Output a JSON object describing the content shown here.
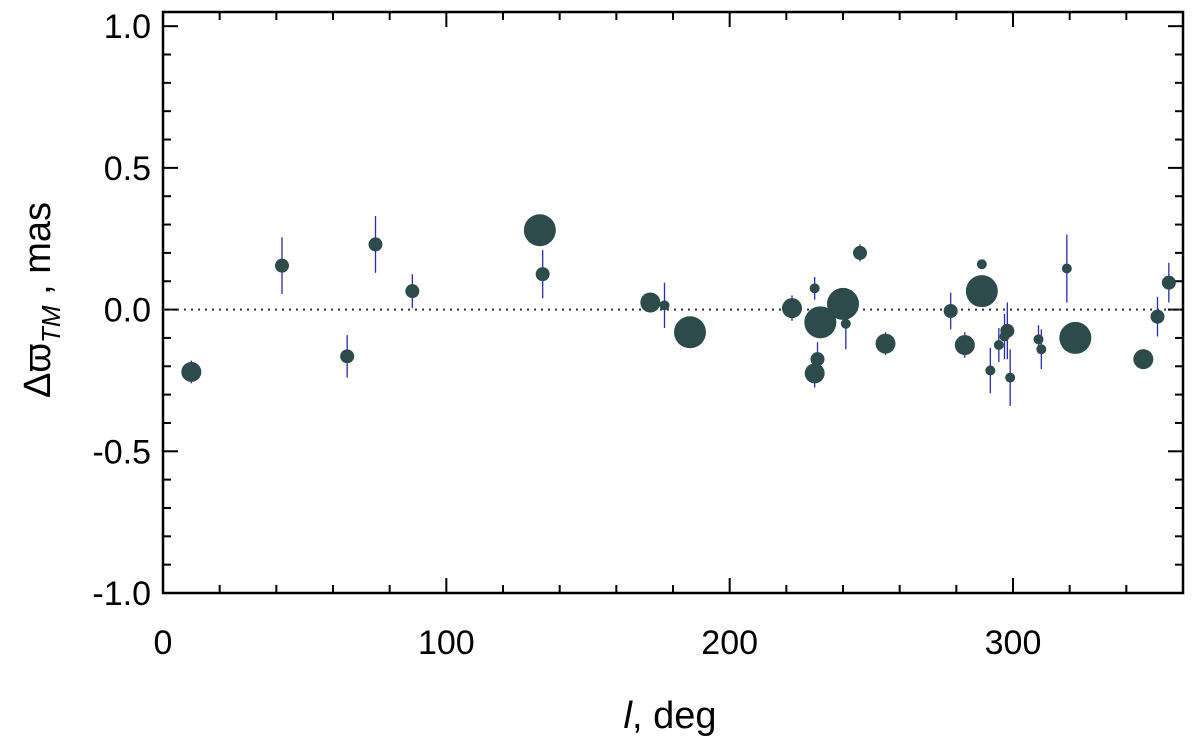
{
  "chart_data": {
    "type": "scatter",
    "xlabel_italic": "l",
    "xlabel_rest": ", deg",
    "ylabel_main": "Δϖ",
    "ylabel_sub": "TM",
    "ylabel_rest": " , mas",
    "xlim": [
      0,
      360
    ],
    "ylim": [
      -1.0,
      1.05
    ],
    "x_ticks": [
      0,
      100,
      200,
      300
    ],
    "x_tick_labels": [
      "0",
      "100",
      "200",
      "300"
    ],
    "y_ticks": [
      1.0,
      0.5,
      0.0,
      -0.5,
      -1.0
    ],
    "y_tick_labels": [
      "1.0",
      "0.5",
      "0.0",
      "-0.5",
      "-1.0"
    ],
    "x_minor_step": 20,
    "y_minor_step": 0.1,
    "reference_line": {
      "y": 0.0,
      "style": "dotted"
    },
    "grid": false,
    "colors": {
      "marker": "#2e4b4b",
      "errorbar": "#2b2bb0",
      "axis": "#000000"
    },
    "points": [
      {
        "x": 10,
        "y": -0.22,
        "err": 0.04,
        "size": "medium"
      },
      {
        "x": 42,
        "y": 0.155,
        "err": 0.1,
        "size": "small"
      },
      {
        "x": 65,
        "y": -0.165,
        "err": 0.075,
        "size": "small"
      },
      {
        "x": 75,
        "y": 0.23,
        "err": 0.1,
        "size": "small"
      },
      {
        "x": 88,
        "y": 0.065,
        "err": 0.06,
        "size": "small"
      },
      {
        "x": 133,
        "y": 0.28,
        "err": 0.05,
        "size": "large"
      },
      {
        "x": 134,
        "y": 0.125,
        "err": 0.085,
        "size": "small"
      },
      {
        "x": 172,
        "y": 0.025,
        "err": 0.03,
        "size": "medium"
      },
      {
        "x": 177,
        "y": 0.015,
        "err": 0.08,
        "size": "tiny"
      },
      {
        "x": 186,
        "y": -0.08,
        "err": 0.03,
        "size": "large"
      },
      {
        "x": 222,
        "y": 0.005,
        "err": 0.045,
        "size": "medium"
      },
      {
        "x": 230,
        "y": 0.075,
        "err": 0.04,
        "size": "tiny"
      },
      {
        "x": 231,
        "y": -0.175,
        "err": 0.06,
        "size": "small"
      },
      {
        "x": 230,
        "y": -0.225,
        "err": 0.05,
        "size": "medium"
      },
      {
        "x": 232,
        "y": -0.045,
        "err": 0.04,
        "size": "large"
      },
      {
        "x": 240,
        "y": 0.02,
        "err": 0.04,
        "size": "large"
      },
      {
        "x": 241,
        "y": -0.05,
        "err": 0.09,
        "size": "tiny"
      },
      {
        "x": 246,
        "y": 0.2,
        "err": 0.03,
        "size": "small"
      },
      {
        "x": 255,
        "y": -0.12,
        "err": 0.04,
        "size": "medium"
      },
      {
        "x": 278,
        "y": -0.005,
        "err": 0.065,
        "size": "small"
      },
      {
        "x": 283,
        "y": -0.125,
        "err": 0.045,
        "size": "medium"
      },
      {
        "x": 289,
        "y": 0.065,
        "err": 0.035,
        "size": "large"
      },
      {
        "x": 289,
        "y": 0.16,
        "err": 0.015,
        "size": "tiny"
      },
      {
        "x": 292,
        "y": -0.215,
        "err": 0.08,
        "size": "tiny"
      },
      {
        "x": 295,
        "y": -0.125,
        "err": 0.06,
        "size": "tiny"
      },
      {
        "x": 297,
        "y": -0.095,
        "err": 0.08,
        "size": "tiny"
      },
      {
        "x": 298,
        "y": -0.075,
        "err": 0.1,
        "size": "small"
      },
      {
        "x": 299,
        "y": -0.24,
        "err": 0.1,
        "size": "tiny"
      },
      {
        "x": 309,
        "y": -0.105,
        "err": 0.05,
        "size": "tiny"
      },
      {
        "x": 310,
        "y": -0.14,
        "err": 0.07,
        "size": "tiny"
      },
      {
        "x": 319,
        "y": 0.145,
        "err": 0.12,
        "size": "tiny"
      },
      {
        "x": 322,
        "y": -0.1,
        "err": 0.04,
        "size": "large"
      },
      {
        "x": 346,
        "y": -0.175,
        "err": 0.03,
        "size": "medium"
      },
      {
        "x": 351,
        "y": -0.025,
        "err": 0.07,
        "size": "small"
      },
      {
        "x": 355,
        "y": 0.095,
        "err": 0.07,
        "size": "small"
      }
    ]
  }
}
